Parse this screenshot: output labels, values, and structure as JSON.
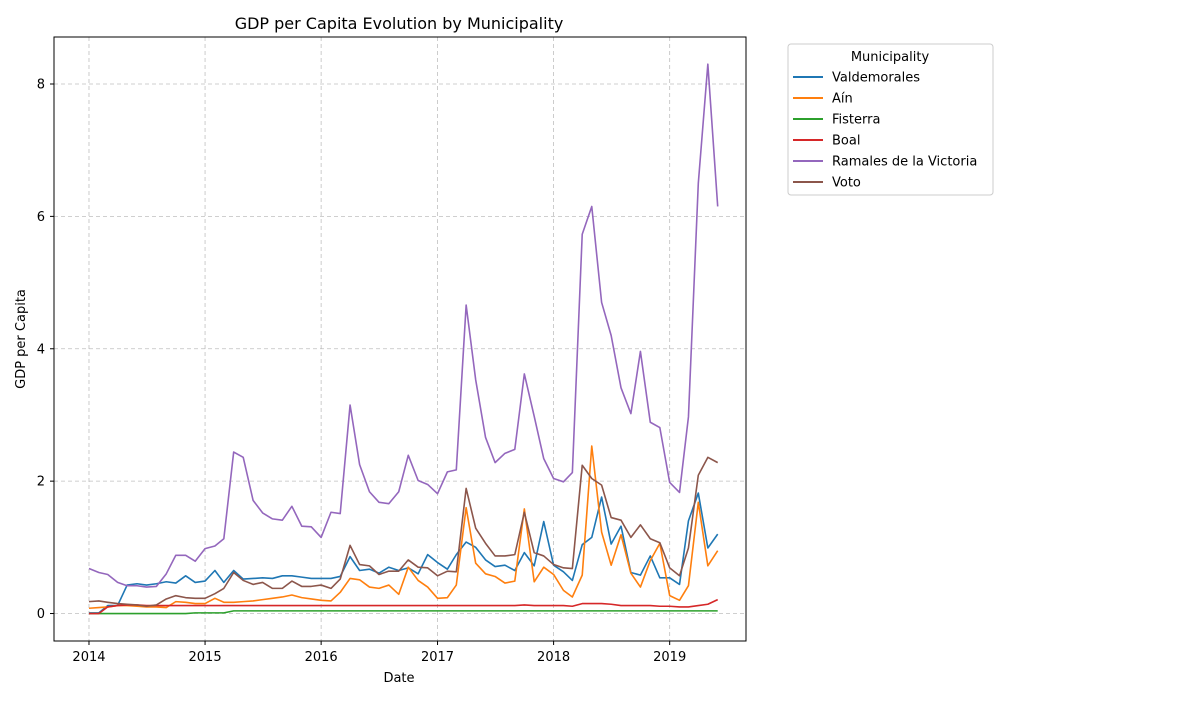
{
  "chart_data": {
    "type": "line",
    "title": "GDP per Capita Evolution by Municipality",
    "xlabel": "Date",
    "ylabel": "GDP per Capita",
    "xlim": [
      "2013-09-13",
      "2019-08-29"
    ],
    "ylim": [
      -0.415,
      8.71
    ],
    "x_ticks": [
      "2014",
      "2015",
      "2016",
      "2017",
      "2018",
      "2019"
    ],
    "y_ticks": [
      0,
      2,
      4,
      6,
      8
    ],
    "grid": true,
    "legend_title": "Municipality",
    "legend_placement": "outside upper-right",
    "x": [
      "2014-01-01",
      "2014-02-01",
      "2014-03-01",
      "2014-04-01",
      "2014-05-01",
      "2014-06-01",
      "2014-07-01",
      "2014-08-01",
      "2014-09-01",
      "2014-10-01",
      "2014-11-01",
      "2014-12-01",
      "2015-01-01",
      "2015-02-01",
      "2015-03-01",
      "2015-04-01",
      "2015-05-01",
      "2015-06-01",
      "2015-07-01",
      "2015-08-01",
      "2015-09-01",
      "2015-10-01",
      "2015-11-01",
      "2015-12-01",
      "2016-01-01",
      "2016-02-01",
      "2016-03-01",
      "2016-04-01",
      "2016-05-01",
      "2016-06-01",
      "2016-07-01",
      "2016-08-01",
      "2016-09-01",
      "2016-10-01",
      "2016-11-01",
      "2016-12-01",
      "2017-01-01",
      "2017-02-01",
      "2017-03-01",
      "2017-04-01",
      "2017-05-01",
      "2017-06-01",
      "2017-07-01",
      "2017-08-01",
      "2017-09-01",
      "2017-10-01",
      "2017-11-01",
      "2017-12-01",
      "2018-01-01",
      "2018-02-01",
      "2018-03-01",
      "2018-04-01",
      "2018-05-01",
      "2018-06-01",
      "2018-07-01",
      "2018-08-01",
      "2018-09-01",
      "2018-10-01",
      "2018-11-01",
      "2018-12-01",
      "2019-01-01",
      "2019-02-01",
      "2019-03-01",
      "2019-04-01",
      "2019-05-01",
      "2019-06-01"
    ],
    "series": [
      {
        "name": "Valdemorales",
        "color": "#1f77b4",
        "values": [
          0.01,
          0.01,
          0.12,
          0.12,
          0.43,
          0.45,
          0.43,
          0.45,
          0.48,
          0.46,
          0.57,
          0.47,
          0.49,
          0.65,
          0.47,
          0.65,
          0.52,
          0.53,
          0.54,
          0.53,
          0.57,
          0.57,
          0.55,
          0.53,
          0.53,
          0.53,
          0.56,
          0.86,
          0.65,
          0.67,
          0.61,
          0.7,
          0.65,
          0.69,
          0.6,
          0.89,
          0.77,
          0.67,
          0.89,
          1.08,
          1.0,
          0.81,
          0.71,
          0.73,
          0.65,
          0.92,
          0.72,
          1.39,
          0.73,
          0.63,
          0.5,
          1.04,
          1.15,
          1.76,
          1.05,
          1.32,
          0.62,
          0.58,
          0.87,
          0.54,
          0.54,
          0.44,
          1.4,
          1.82,
          0.99,
          1.2
        ]
      },
      {
        "name": "Aín",
        "color": "#ff7f0e",
        "values": [
          0.08,
          0.09,
          0.1,
          0.12,
          0.12,
          0.11,
          0.1,
          0.1,
          0.09,
          0.18,
          0.17,
          0.15,
          0.15,
          0.23,
          0.17,
          0.17,
          0.18,
          0.19,
          0.21,
          0.23,
          0.25,
          0.28,
          0.24,
          0.22,
          0.2,
          0.19,
          0.32,
          0.53,
          0.51,
          0.4,
          0.38,
          0.43,
          0.29,
          0.7,
          0.5,
          0.4,
          0.23,
          0.24,
          0.43,
          1.6,
          0.76,
          0.6,
          0.56,
          0.46,
          0.49,
          1.58,
          0.48,
          0.7,
          0.59,
          0.35,
          0.25,
          0.58,
          2.53,
          1.23,
          0.73,
          1.19,
          0.61,
          0.4,
          0.8,
          1.06,
          0.27,
          0.2,
          0.42,
          1.68,
          0.72,
          0.95
        ]
      },
      {
        "name": "Fisterra",
        "color": "#2ca02c",
        "values": [
          0.0,
          0.0,
          0.0,
          0.0,
          0.0,
          0.0,
          0.0,
          0.0,
          0.0,
          0.0,
          0.0,
          0.01,
          0.01,
          0.01,
          0.01,
          0.04,
          0.04,
          0.04,
          0.04,
          0.04,
          0.04,
          0.04,
          0.04,
          0.04,
          0.04,
          0.04,
          0.04,
          0.04,
          0.04,
          0.04,
          0.04,
          0.04,
          0.04,
          0.04,
          0.04,
          0.04,
          0.04,
          0.04,
          0.04,
          0.04,
          0.04,
          0.04,
          0.04,
          0.04,
          0.04,
          0.04,
          0.04,
          0.04,
          0.04,
          0.04,
          0.04,
          0.04,
          0.04,
          0.04,
          0.04,
          0.04,
          0.04,
          0.04,
          0.04,
          0.04,
          0.04,
          0.04,
          0.04,
          0.04,
          0.04,
          0.04
        ]
      },
      {
        "name": "Boal",
        "color": "#d62728",
        "values": [
          0.0,
          0.0,
          0.1,
          0.12,
          0.13,
          0.13,
          0.12,
          0.12,
          0.12,
          0.12,
          0.12,
          0.12,
          0.12,
          0.12,
          0.12,
          0.12,
          0.12,
          0.12,
          0.12,
          0.12,
          0.12,
          0.12,
          0.12,
          0.12,
          0.12,
          0.12,
          0.12,
          0.12,
          0.12,
          0.12,
          0.12,
          0.12,
          0.12,
          0.12,
          0.12,
          0.12,
          0.12,
          0.12,
          0.12,
          0.12,
          0.12,
          0.12,
          0.12,
          0.12,
          0.12,
          0.13,
          0.12,
          0.12,
          0.12,
          0.12,
          0.11,
          0.15,
          0.15,
          0.15,
          0.14,
          0.12,
          0.12,
          0.12,
          0.12,
          0.11,
          0.11,
          0.1,
          0.1,
          0.12,
          0.14,
          0.21
        ]
      },
      {
        "name": "Ramales de la Victoria",
        "color": "#9467bd",
        "values": [
          0.68,
          0.62,
          0.59,
          0.47,
          0.42,
          0.42,
          0.4,
          0.41,
          0.6,
          0.88,
          0.88,
          0.79,
          0.98,
          1.02,
          1.13,
          2.44,
          2.36,
          1.71,
          1.52,
          1.43,
          1.41,
          1.62,
          1.32,
          1.31,
          1.15,
          1.53,
          1.51,
          3.15,
          2.25,
          1.84,
          1.68,
          1.66,
          1.84,
          2.39,
          2.01,
          1.95,
          1.81,
          2.14,
          2.17,
          4.66,
          3.53,
          2.66,
          2.28,
          2.42,
          2.48,
          3.62,
          2.98,
          2.34,
          2.04,
          1.99,
          2.13,
          5.73,
          6.15,
          4.7,
          4.2,
          3.41,
          3.02,
          3.96,
          2.89,
          2.81,
          1.98,
          1.83,
          2.97,
          6.5,
          8.3,
          6.15
        ]
      },
      {
        "name": "Voto",
        "color": "#8c564b",
        "values": [
          0.18,
          0.19,
          0.17,
          0.15,
          0.14,
          0.13,
          0.11,
          0.13,
          0.22,
          0.27,
          0.24,
          0.23,
          0.23,
          0.3,
          0.38,
          0.62,
          0.5,
          0.44,
          0.47,
          0.38,
          0.38,
          0.49,
          0.41,
          0.41,
          0.43,
          0.38,
          0.52,
          1.03,
          0.74,
          0.72,
          0.59,
          0.64,
          0.64,
          0.81,
          0.7,
          0.69,
          0.57,
          0.64,
          0.63,
          1.89,
          1.29,
          1.06,
          0.87,
          0.87,
          0.89,
          1.53,
          0.92,
          0.87,
          0.74,
          0.69,
          0.68,
          2.24,
          2.04,
          1.94,
          1.45,
          1.41,
          1.15,
          1.34,
          1.13,
          1.07,
          0.69,
          0.57,
          0.99,
          2.09,
          2.36,
          2.28
        ]
      }
    ]
  }
}
